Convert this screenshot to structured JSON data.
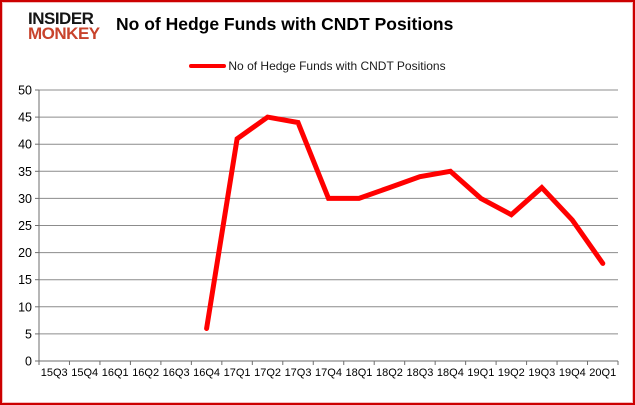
{
  "header": {
    "logo_line1": "INSIDER",
    "logo_line2": "MONKEY",
    "title": "No of Hedge Funds with CNDT Positions"
  },
  "legend": {
    "label": "No of Hedge Funds with CNDT Positions"
  },
  "colors": {
    "line": "#ff0000",
    "logo_black": "#141414",
    "logo_red": "#c8432c",
    "frame_border": "#cc0000",
    "gridline": "#8c8c8c",
    "axis": "#6e6e6e",
    "tick_text": "#000000"
  },
  "chart_data": {
    "type": "line",
    "title": "No of Hedge Funds with CNDT Positions",
    "categories": [
      "15Q3",
      "15Q4",
      "16Q1",
      "16Q2",
      "16Q3",
      "16Q4",
      "17Q1",
      "17Q2",
      "17Q3",
      "17Q4",
      "18Q1",
      "18Q2",
      "18Q3",
      "18Q4",
      "19Q1",
      "19Q2",
      "19Q3",
      "19Q4",
      "20Q1"
    ],
    "series": [
      {
        "name": "No of Hedge Funds with CNDT Positions",
        "values": [
          null,
          null,
          null,
          null,
          null,
          6,
          41,
          45,
          44,
          30,
          30,
          32,
          34,
          35,
          30,
          27,
          32,
          26,
          18
        ]
      }
    ],
    "xlabel": "",
    "ylabel": "",
    "ylim": [
      0,
      50
    ],
    "ytick_step": 5,
    "grid": "horizontal",
    "legend_position": "top-center",
    "line_width": 5
  }
}
